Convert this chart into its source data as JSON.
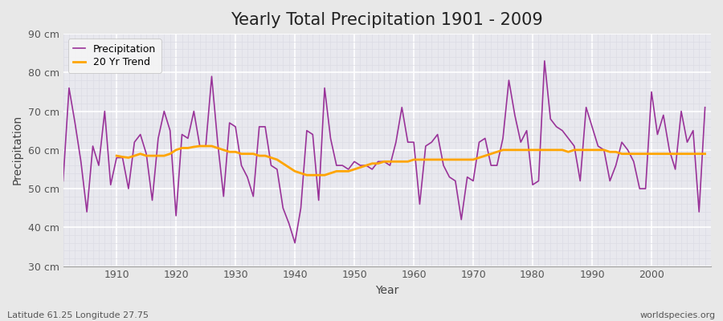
{
  "title": "Yearly Total Precipitation 1901 - 2009",
  "xlabel": "Year",
  "ylabel": "Precipitation",
  "subtitle_left": "Latitude 61.25 Longitude 27.75",
  "subtitle_right": "worldspecies.org",
  "years": [
    1901,
    1902,
    1903,
    1904,
    1905,
    1906,
    1907,
    1908,
    1909,
    1910,
    1911,
    1912,
    1913,
    1914,
    1915,
    1916,
    1917,
    1918,
    1919,
    1920,
    1921,
    1922,
    1923,
    1924,
    1925,
    1926,
    1927,
    1928,
    1929,
    1930,
    1931,
    1932,
    1933,
    1934,
    1935,
    1936,
    1937,
    1938,
    1939,
    1940,
    1941,
    1942,
    1943,
    1944,
    1945,
    1946,
    1947,
    1948,
    1949,
    1950,
    1951,
    1952,
    1953,
    1954,
    1955,
    1956,
    1957,
    1958,
    1959,
    1960,
    1961,
    1962,
    1963,
    1964,
    1965,
    1966,
    1967,
    1968,
    1969,
    1970,
    1971,
    1972,
    1973,
    1974,
    1975,
    1976,
    1977,
    1978,
    1979,
    1980,
    1981,
    1982,
    1983,
    1984,
    1985,
    1986,
    1987,
    1988,
    1989,
    1990,
    1991,
    1992,
    1993,
    1994,
    1995,
    1996,
    1997,
    1998,
    1999,
    2000,
    2001,
    2002,
    2003,
    2004,
    2005,
    2006,
    2007,
    2008,
    2009
  ],
  "precip": [
    52,
    76,
    67,
    57,
    44,
    61,
    56,
    70,
    51,
    58,
    58,
    50,
    62,
    64,
    59,
    47,
    63,
    70,
    65,
    43,
    64,
    63,
    70,
    61,
    61,
    79,
    62,
    48,
    67,
    66,
    56,
    53,
    48,
    66,
    66,
    56,
    55,
    45,
    41,
    36,
    45,
    65,
    64,
    47,
    76,
    63,
    56,
    56,
    55,
    57,
    56,
    56,
    55,
    57,
    57,
    56,
    62,
    71,
    62,
    62,
    46,
    61,
    62,
    64,
    56,
    53,
    52,
    42,
    53,
    52,
    62,
    63,
    56,
    56,
    63,
    78,
    69,
    62,
    65,
    51,
    52,
    83,
    68,
    66,
    65,
    63,
    61,
    52,
    71,
    66,
    61,
    60,
    52,
    56,
    62,
    60,
    57,
    50,
    50,
    75,
    64,
    69,
    60,
    55,
    70,
    62,
    65,
    44,
    71
  ],
  "trend_years": [
    1910,
    1911,
    1912,
    1913,
    1914,
    1915,
    1916,
    1917,
    1918,
    1919,
    1920,
    1921,
    1922,
    1923,
    1924,
    1925,
    1926,
    1927,
    1928,
    1929,
    1930,
    1931,
    1932,
    1933,
    1934,
    1935,
    1936,
    1937,
    1938,
    1939,
    1940,
    1941,
    1942,
    1943,
    1944,
    1945,
    1946,
    1947,
    1948,
    1949,
    1950,
    1951,
    1952,
    1953,
    1954,
    1955,
    1956,
    1957,
    1958,
    1959,
    1960,
    1961,
    1962,
    1963,
    1964,
    1965,
    1966,
    1967,
    1968,
    1969,
    1970,
    1971,
    1972,
    1973,
    1974,
    1975,
    1976,
    1977,
    1978,
    1979,
    1980,
    1981,
    1982,
    1983,
    1984,
    1985,
    1986,
    1987,
    1988,
    1989,
    1990,
    1991,
    1992,
    1993,
    1994,
    1995,
    1996,
    1997,
    1998,
    1999,
    2000,
    2001,
    2002,
    2003,
    2004,
    2005,
    2006,
    2007,
    2008,
    2009
  ],
  "trend": [
    58.5,
    58.2,
    58.0,
    58.5,
    59.0,
    58.5,
    58.5,
    58.5,
    58.5,
    59.0,
    60.0,
    60.5,
    60.5,
    60.8,
    61.0,
    61.0,
    61.0,
    60.5,
    60.0,
    59.5,
    59.5,
    59.0,
    59.0,
    59.0,
    58.5,
    58.5,
    58.0,
    57.5,
    56.5,
    55.5,
    54.5,
    54.0,
    53.5,
    53.5,
    53.5,
    53.5,
    54.0,
    54.5,
    54.5,
    54.5,
    55.0,
    55.5,
    56.0,
    56.5,
    56.5,
    57.0,
    57.0,
    57.0,
    57.0,
    57.0,
    57.5,
    57.5,
    57.5,
    57.5,
    57.5,
    57.5,
    57.5,
    57.5,
    57.5,
    57.5,
    57.5,
    58.0,
    58.5,
    59.0,
    59.5,
    60.0,
    60.0,
    60.0,
    60.0,
    60.0,
    60.0,
    60.0,
    60.0,
    60.0,
    60.0,
    60.0,
    59.5,
    60.0,
    60.0,
    60.0,
    60.0,
    60.0,
    60.0,
    59.5,
    59.5,
    59.0,
    59.0,
    59.0,
    59.0,
    59.0,
    59.0,
    59.0,
    59.0,
    59.0,
    59.0,
    59.0,
    59.0,
    59.0,
    59.0,
    59.0
  ],
  "precip_color": "#993399",
  "trend_color": "#FFA500",
  "bg_outer": "#E8E8E8",
  "bg_plot": "#E8E8EE",
  "grid_major_color": "#FFFFFF",
  "grid_minor_color": "#DCDCE4",
  "ylim": [
    30,
    90
  ],
  "yticks": [
    30,
    40,
    50,
    60,
    70,
    80,
    90
  ],
  "xticks": [
    1910,
    1920,
    1930,
    1940,
    1950,
    1960,
    1970,
    1980,
    1990,
    2000
  ],
  "legend_precip": "Precipitation",
  "legend_trend": "20 Yr Trend",
  "title_fontsize": 15,
  "axis_label_fontsize": 10,
  "tick_fontsize": 9,
  "legend_fontsize": 9,
  "footer_fontsize": 8
}
